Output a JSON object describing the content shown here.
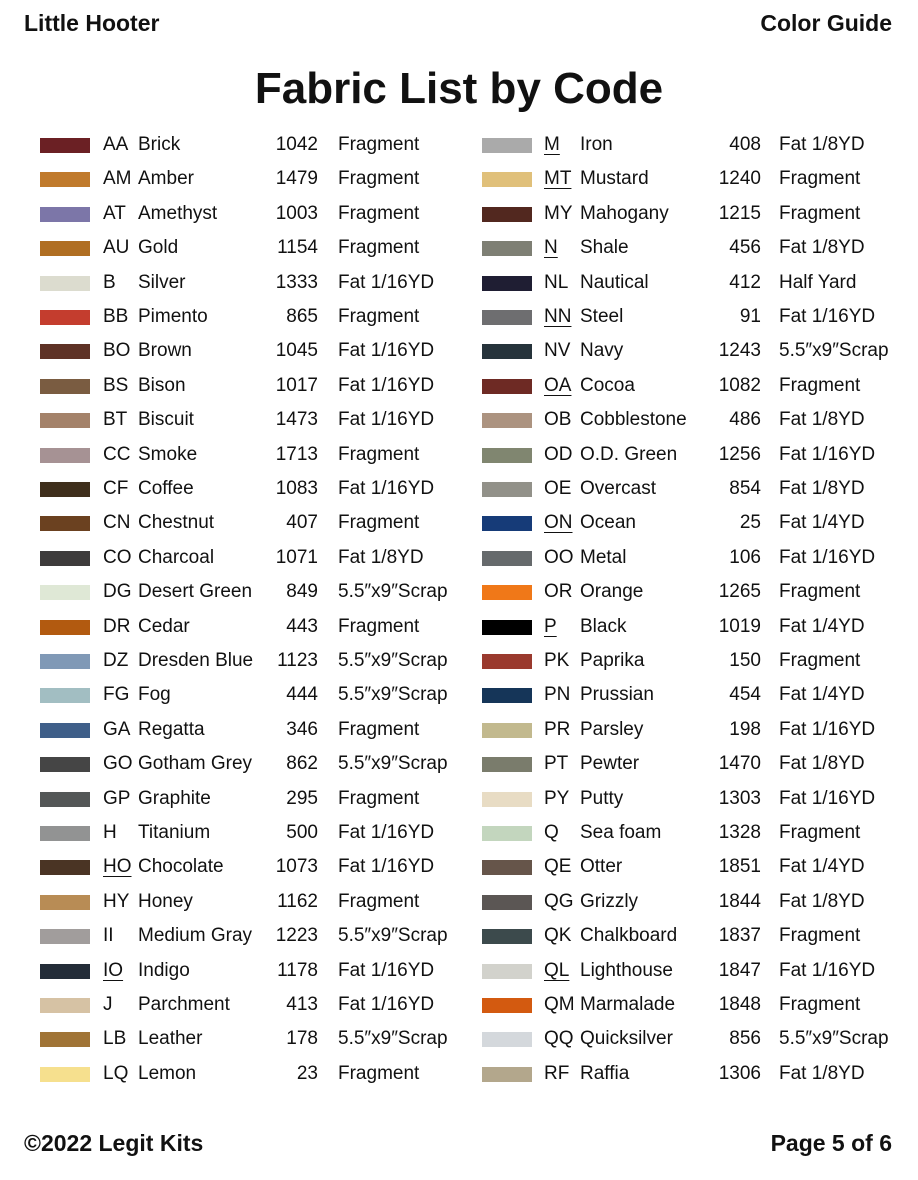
{
  "header": {
    "left": "Little Hooter",
    "right": "Color Guide"
  },
  "title": "Fabric List by Code",
  "columns": [
    {
      "rows": [
        {
          "code": "AA",
          "name": "Brick",
          "number": 1042,
          "size": "Fragment",
          "color": "#6b2024"
        },
        {
          "code": "AM",
          "name": "Amber",
          "number": 1479,
          "size": "Fragment",
          "color": "#c07a2c"
        },
        {
          "code": "AT",
          "name": "Amethyst",
          "number": 1003,
          "size": "Fragment",
          "color": "#7c76a8"
        },
        {
          "code": "AU",
          "name": "Gold",
          "number": 1154,
          "size": "Fragment",
          "color": "#b06e22"
        },
        {
          "code": "B",
          "name": "Silver",
          "number": 1333,
          "size": "Fat 1/16YD",
          "color": "#dcdccf"
        },
        {
          "code": "BB",
          "name": "Pimento",
          "number": 865,
          "size": "Fragment",
          "color": "#c43d2e"
        },
        {
          "code": "BO",
          "name": "Brown",
          "number": 1045,
          "size": "Fat 1/16YD",
          "color": "#5e3226"
        },
        {
          "code": "BS",
          "name": "Bison",
          "number": 1017,
          "size": "Fat 1/16YD",
          "color": "#7a5c41"
        },
        {
          "code": "BT",
          "name": "Biscuit",
          "number": 1473,
          "size": "Fat 1/16YD",
          "color": "#a4826a"
        },
        {
          "code": "CC",
          "name": "Smoke",
          "number": 1713,
          "size": "Fragment",
          "color": "#a69294"
        },
        {
          "code": "CF",
          "name": "Coffee",
          "number": 1083,
          "size": "Fat 1/16YD",
          "color": "#3f2f1c"
        },
        {
          "code": "CN",
          "name": "Chestnut",
          "number": 407,
          "size": "Fragment",
          "color": "#6b4120"
        },
        {
          "code": "CO",
          "name": "Charcoal",
          "number": 1071,
          "size": "Fat 1/8YD",
          "color": "#3d3b3b"
        },
        {
          "code": "DG",
          "name": "Desert Green",
          "number": 849,
          "size": "5.5″x9″Scrap",
          "color": "#dfe8d6"
        },
        {
          "code": "DR",
          "name": "Cedar",
          "number": 443,
          "size": "Fragment",
          "color": "#b25a10"
        },
        {
          "code": "DZ",
          "name": "Dresden Blue",
          "number": 1123,
          "size": "5.5″x9″Scrap",
          "color": "#8099b6"
        },
        {
          "code": "FG",
          "name": "Fog",
          "number": 444,
          "size": "5.5″x9″Scrap",
          "color": "#a2bec2"
        },
        {
          "code": "GA",
          "name": "Regatta",
          "number": 346,
          "size": "Fragment",
          "color": "#3f5f89"
        },
        {
          "code": "GO",
          "name": "Gotham Grey",
          "number": 862,
          "size": "5.5″x9″Scrap",
          "color": "#454545"
        },
        {
          "code": "GP",
          "name": "Graphite",
          "number": 295,
          "size": "Fragment",
          "color": "#545757"
        },
        {
          "code": "H",
          "name": "Titanium",
          "number": 500,
          "size": "Fat 1/16YD",
          "color": "#929393"
        },
        {
          "code": "HO",
          "name": "Chocolate",
          "number": 1073,
          "size": "Fat 1/16YD",
          "color": "#4a3424",
          "underline": true
        },
        {
          "code": "HY",
          "name": "Honey",
          "number": 1162,
          "size": "Fragment",
          "color": "#b88c55"
        },
        {
          "code": "II",
          "name": "Medium Gray",
          "number": 1223,
          "size": "5.5″x9″Scrap",
          "color": "#a19d9c"
        },
        {
          "code": "IO",
          "name": "Indigo",
          "number": 1178,
          "size": "Fat 1/16YD",
          "color": "#232c38",
          "underline": true
        },
        {
          "code": "J",
          "name": "Parchment",
          "number": 413,
          "size": "Fat 1/16YD",
          "color": "#d6c2a4"
        },
        {
          "code": "LB",
          "name": "Leather",
          "number": 178,
          "size": "5.5″x9″Scrap",
          "color": "#a07436"
        },
        {
          "code": "LQ",
          "name": "Lemon",
          "number": 23,
          "size": "Fragment",
          "color": "#f6e08e"
        }
      ]
    },
    {
      "rows": [
        {
          "code": "M",
          "name": "Iron",
          "number": 408,
          "size": "Fat 1/8YD",
          "color": "#aaaaaa",
          "underline": true
        },
        {
          "code": "MT",
          "name": "Mustard",
          "number": 1240,
          "size": "Fragment",
          "color": "#e0c07a",
          "underline": true
        },
        {
          "code": "MY",
          "name": "Mahogany",
          "number": 1215,
          "size": "Fragment",
          "color": "#52281f"
        },
        {
          "code": "N",
          "name": "Shale",
          "number": 456,
          "size": "Fat 1/8YD",
          "color": "#7e7f74",
          "underline": true
        },
        {
          "code": "NL",
          "name": "Nautical",
          "number": 412,
          "size": "Half Yard",
          "color": "#1f1e33"
        },
        {
          "code": "NN",
          "name": "Steel",
          "number": 91,
          "size": "Fat 1/16YD",
          "color": "#6e6e70",
          "underline": true
        },
        {
          "code": "NV",
          "name": "Navy",
          "number": 1243,
          "size": "5.5″x9″Scrap",
          "color": "#26333b"
        },
        {
          "code": "OA",
          "name": "Cocoa",
          "number": 1082,
          "size": "Fragment",
          "color": "#6e2a24",
          "underline": true
        },
        {
          "code": "OB",
          "name": "Cobblestone",
          "number": 486,
          "size": "Fat 1/8YD",
          "color": "#ac9380"
        },
        {
          "code": "OD",
          "name": "O.D. Green",
          "number": 1256,
          "size": "Fat 1/16YD",
          "color": "#808670"
        },
        {
          "code": "OE",
          "name": "Overcast",
          "number": 854,
          "size": "Fat 1/8YD",
          "color": "#929189"
        },
        {
          "code": "ON",
          "name": "Ocean",
          "number": 25,
          "size": "Fat 1/4YD",
          "color": "#163b78",
          "underline": true
        },
        {
          "code": "OO",
          "name": "Metal",
          "number": 106,
          "size": "Fat 1/16YD",
          "color": "#666a6c"
        },
        {
          "code": "OR",
          "name": "Orange",
          "number": 1265,
          "size": "Fragment",
          "color": "#f07818"
        },
        {
          "code": "P",
          "name": "Black",
          "number": 1019,
          "size": "Fat 1/4YD",
          "color": "#000000",
          "underline": true
        },
        {
          "code": "PK",
          "name": "Paprika",
          "number": 150,
          "size": "Fragment",
          "color": "#9a3a2e"
        },
        {
          "code": "PN",
          "name": "Prussian",
          "number": 454,
          "size": "Fat 1/4YD",
          "color": "#153558"
        },
        {
          "code": "PR",
          "name": "Parsley",
          "number": 198,
          "size": "Fat 1/16YD",
          "color": "#c2b98e"
        },
        {
          "code": "PT",
          "name": "Pewter",
          "number": 1470,
          "size": "Fat 1/8YD",
          "color": "#7a7c6c"
        },
        {
          "code": "PY",
          "name": "Putty",
          "number": 1303,
          "size": "Fat 1/16YD",
          "color": "#e8dcc4"
        },
        {
          "code": "Q",
          "name": "Sea foam",
          "number": 1328,
          "size": "Fragment",
          "color": "#c3d6be"
        },
        {
          "code": "QE",
          "name": "Otter",
          "number": 1851,
          "size": "Fat 1/4YD",
          "color": "#66554a"
        },
        {
          "code": "QG",
          "name": "Grizzly",
          "number": 1844,
          "size": "Fat 1/8YD",
          "color": "#5b5654"
        },
        {
          "code": "QK",
          "name": "Chalkboard",
          "number": 1837,
          "size": "Fragment",
          "color": "#3c4a4c"
        },
        {
          "code": "QL",
          "name": "Lighthouse",
          "number": 1847,
          "size": "Fat 1/16YD",
          "color": "#d2d2cc",
          "underline": true
        },
        {
          "code": "QM",
          "name": "Marmalade",
          "number": 1848,
          "size": "Fragment",
          "color": "#d35a10"
        },
        {
          "code": "QQ",
          "name": "Quicksilver",
          "number": 856,
          "size": "5.5″x9″Scrap",
          "color": "#d4d8dc"
        },
        {
          "code": "RF",
          "name": "Raffia",
          "number": 1306,
          "size": "Fat 1/8YD",
          "color": "#b3a78c"
        }
      ]
    }
  ],
  "footer": {
    "left": "©2022 Legit Kits",
    "right": "Page 5 of 6"
  }
}
